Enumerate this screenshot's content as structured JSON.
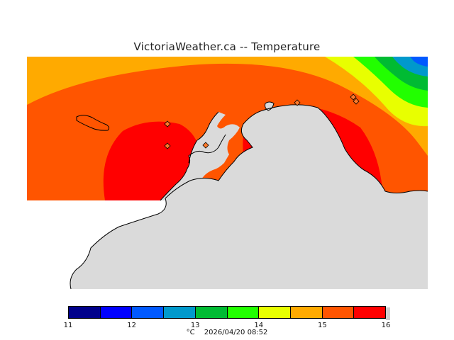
{
  "title": "VictoriaWeather.ca  --  Temperature",
  "colorbar": {
    "colors": [
      "#00008b",
      "#0000ff",
      "#0059ff",
      "#0099cc",
      "#00bb33",
      "#22ff00",
      "#e8ff00",
      "#ffaa00",
      "#ff5500",
      "#ff0000"
    ],
    "ticks": [
      "11",
      "12",
      "13",
      "14",
      "15",
      "16"
    ]
  },
  "footer": {
    "unit": "°C",
    "timestamp": "2026/04/20 08:52"
  },
  "map": {
    "field_colors": {
      "band_11_5": "#0059ff",
      "band_12": "#0099cc",
      "band_12_5": "#00bb33",
      "band_13": "#22ff00",
      "band_14": "#e8ff00",
      "band_14_5": "#ffaa00",
      "band_15": "#ff5500",
      "band_16": "#ff0000",
      "land": "#dadada",
      "station": "#ff7a2a"
    }
  }
}
